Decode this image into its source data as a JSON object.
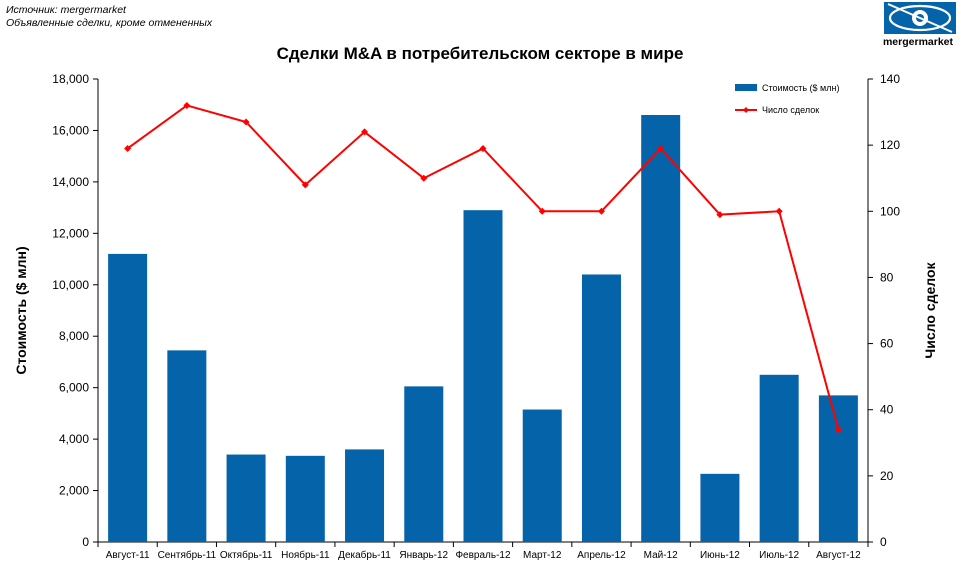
{
  "source_line1": "Источник: mergermarket",
  "source_line2": "Объявленные сделки, кроме отмененных",
  "title": "Сделки M&A в потребительском секторе в мире",
  "logo_text": "mergermarket",
  "colors": {
    "bar": "#0563a9",
    "line": "#ff0000",
    "axis": "#000000"
  },
  "chart_data": {
    "type": "bar",
    "categories": [
      "Август-11",
      "Сентябрь-11",
      "Октябрь-11",
      "Ноябрь-11",
      "Декабрь-11",
      "Январь-12",
      "Февраль-12",
      "Март-12",
      "Апрель-12",
      "Май-12",
      "Июнь-12",
      "Июль-12",
      "Август-12"
    ],
    "series": [
      {
        "name": "Стоимость ($ млн)",
        "type": "bar",
        "axis": "left",
        "values": [
          11200,
          7450,
          3400,
          3350,
          3600,
          6050,
          12900,
          5150,
          10400,
          16600,
          2650,
          6500,
          5700
        ]
      },
      {
        "name": "Число сделок",
        "type": "line",
        "axis": "right",
        "values": [
          119,
          132,
          127,
          108,
          124,
          110,
          119,
          100,
          100,
          119,
          99,
          100,
          34
        ]
      }
    ],
    "ylabel": "Стоимость ($ млн)",
    "y2label": "Число сделок",
    "ylim": [
      0,
      18000
    ],
    "y2lim": [
      0,
      140
    ],
    "yticks": [
      "0",
      "2,000",
      "4,000",
      "6,000",
      "8,000",
      "10,000",
      "12,000",
      "14,000",
      "16,000",
      "18,000"
    ],
    "y2ticks": [
      "0",
      "20",
      "40",
      "60",
      "80",
      "100",
      "120",
      "140"
    ],
    "legend": "top-right"
  }
}
